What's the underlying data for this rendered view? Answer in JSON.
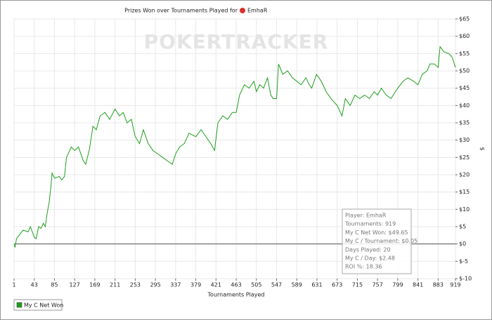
{
  "chart_data": {
    "type": "line",
    "title": "Prizes Won over Tournaments Played for",
    "player": "EmhaR",
    "watermark": "POKERTRACKER",
    "x_label": "Tournaments Played",
    "y_label": "$",
    "xlim": [
      1,
      919
    ],
    "xticks": [
      1,
      43,
      85,
      127,
      169,
      211,
      253,
      295,
      337,
      379,
      421,
      463,
      505,
      547,
      589,
      631,
      673,
      715,
      757,
      799,
      841,
      883,
      919
    ],
    "ylim": [
      -10,
      65
    ],
    "yticks": [
      {
        "value": -10,
        "label": "$-10"
      },
      {
        "value": -5,
        "label": "$-5"
      },
      {
        "value": 0,
        "label": "$0"
      },
      {
        "value": 5,
        "label": "$5"
      },
      {
        "value": 10,
        "label": "$10"
      },
      {
        "value": 15,
        "label": "$15"
      },
      {
        "value": 20,
        "label": "$20"
      },
      {
        "value": 25,
        "label": "$25"
      },
      {
        "value": 30,
        "label": "$30"
      },
      {
        "value": 35,
        "label": "$35"
      },
      {
        "value": 40,
        "label": "$40"
      },
      {
        "value": 45,
        "label": "$45"
      },
      {
        "value": 50,
        "label": "$50"
      },
      {
        "value": 55,
        "label": "$55"
      },
      {
        "value": 60,
        "label": "$60"
      },
      {
        "value": 65,
        "label": "$65"
      }
    ],
    "grid": true,
    "x": [
      1,
      3,
      6,
      14,
      20,
      30,
      35,
      43,
      47,
      52,
      57,
      62,
      66,
      70,
      74,
      78,
      80,
      85,
      95,
      100,
      106,
      110,
      120,
      127,
      135,
      145,
      150,
      158,
      165,
      172,
      180,
      190,
      200,
      211,
      220,
      228,
      236,
      245,
      253,
      262,
      270,
      280,
      290,
      300,
      310,
      320,
      330,
      337,
      345,
      355,
      365,
      379,
      390,
      400,
      410,
      418,
      425,
      435,
      445,
      455,
      463,
      470,
      480,
      490,
      500,
      505,
      512,
      520,
      528,
      535,
      540,
      547,
      551,
      560,
      570,
      580,
      589,
      598,
      608,
      615,
      620,
      630,
      640,
      650,
      660,
      673,
      683,
      690,
      700,
      710,
      720,
      730,
      740,
      750,
      757,
      765,
      775,
      785,
      799,
      810,
      820,
      832,
      841,
      850,
      860,
      866,
      875,
      883,
      887,
      895,
      905,
      912,
      919
    ],
    "series": [
      {
        "name": "My C Net Won",
        "color": "#1e9e1e",
        "values": [
          0,
          -1,
          1.5,
          3,
          4,
          3.5,
          5,
          2,
          1.5,
          5,
          4.5,
          6,
          5,
          9,
          12,
          17,
          20.5,
          19,
          19.5,
          18.5,
          19.5,
          25,
          28,
          27,
          28,
          24,
          23,
          27.5,
          34,
          33,
          37,
          38,
          36,
          39,
          37,
          38,
          35,
          36,
          31,
          29,
          33,
          29,
          27,
          26,
          25,
          24,
          23,
          26,
          28,
          29,
          32,
          31,
          33,
          31,
          29,
          27,
          35,
          37,
          36,
          38,
          38,
          43,
          46,
          45,
          47,
          44,
          46,
          45,
          48,
          43,
          42,
          42,
          52,
          49,
          50,
          48,
          47,
          46,
          48,
          46,
          45,
          49,
          47,
          44,
          42,
          40,
          37,
          42,
          40,
          43,
          42,
          43,
          42,
          44,
          43,
          45,
          43,
          42,
          45,
          47,
          48,
          47,
          46,
          49,
          50,
          52,
          52,
          51,
          57,
          55.5,
          55,
          54,
          51
        ]
      }
    ],
    "info_box": [
      "Player: EmhaR",
      "Tournaments: 919",
      "My C Net Won: $49.65",
      "My C / Tournament: $0.05",
      "Days Played: 20",
      "My C / Day: $2.48",
      "ROI %: 18.36"
    ]
  }
}
